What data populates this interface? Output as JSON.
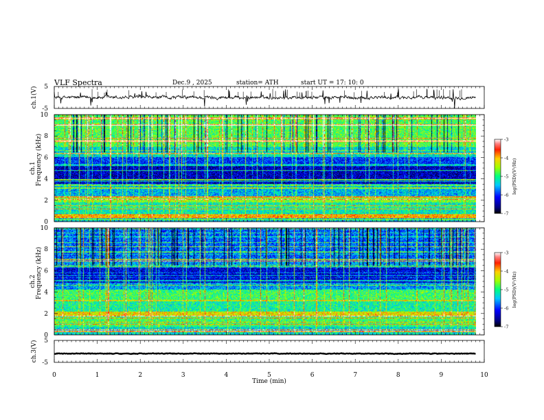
{
  "header": {
    "title": "VLF  Spectra",
    "date": "Dec.9  , 2025",
    "station": "station= ATH",
    "start_ut": "start  UT  =   17: 10: 0"
  },
  "chart_data": [
    {
      "type": "line",
      "name": "ch1-waveform",
      "ylabel": "ch.1(V)",
      "ylim": [
        -5,
        5
      ],
      "yticks": [
        "5",
        "-5"
      ],
      "xlim": [
        0,
        10
      ],
      "baseline": 0,
      "noise_amplitude": 0.6,
      "series_color": "#000000"
    },
    {
      "type": "heatmap",
      "name": "ch1-spectrogram",
      "ylabel_line1": "ch.1",
      "ylabel_line2": "Frequency  (kHz)",
      "ylim": [
        0,
        10
      ],
      "yticks": [
        "0",
        "2",
        "4",
        "6",
        "8",
        "10"
      ],
      "xlim": [
        0,
        9.8
      ],
      "colorbar": {
        "label": "log(PSD)(V²/Hz)",
        "range": [
          -7,
          -3
        ],
        "ticks": [
          "-3",
          "-4",
          "-5",
          "-6",
          "-7"
        ]
      },
      "bands": [
        {
          "f": [
            0,
            0.3
          ],
          "v": -5.5
        },
        {
          "f": [
            0.3,
            0.7
          ],
          "v": -4.0
        },
        {
          "f": [
            0.7,
            1.8
          ],
          "v": -5.2
        },
        {
          "f": [
            1.8,
            2.4
          ],
          "v": -4.6
        },
        {
          "f": [
            2.4,
            3.5
          ],
          "v": -5.5
        },
        {
          "f": [
            3.5,
            5.3
          ],
          "v": -6.4
        },
        {
          "f": [
            5.3,
            6.0
          ],
          "v": -6.0
        },
        {
          "f": [
            6.0,
            7.0
          ],
          "v": -5.3
        },
        {
          "f": [
            7.0,
            10.0
          ],
          "v": -4.8
        }
      ]
    },
    {
      "type": "heatmap",
      "name": "ch2-spectrogram",
      "ylabel_line1": "ch.2",
      "ylabel_line2": "Frequency  (kHz)",
      "ylim": [
        0,
        10
      ],
      "yticks": [
        "0",
        "2",
        "4",
        "6",
        "8",
        "10"
      ],
      "xlim": [
        0,
        9.8
      ],
      "colorbar": {
        "label": "log(PSD)(V²/Hz)",
        "range": [
          -7,
          -3
        ],
        "ticks": [
          "-3",
          "-4",
          "-5",
          "-6",
          "-7"
        ]
      },
      "bands": [
        {
          "f": [
            0,
            0.8
          ],
          "v": -5.3
        },
        {
          "f": [
            0.8,
            1.7
          ],
          "v": -4.9
        },
        {
          "f": [
            1.7,
            2.2
          ],
          "v": -4.2
        },
        {
          "f": [
            2.2,
            3.3
          ],
          "v": -5.1
        },
        {
          "f": [
            3.3,
            4.2
          ],
          "v": -4.9
        },
        {
          "f": [
            4.2,
            4.9
          ],
          "v": -5.6
        },
        {
          "f": [
            4.9,
            6.3
          ],
          "v": -6.3
        },
        {
          "f": [
            6.3,
            7.0
          ],
          "v": -5.6
        },
        {
          "f": [
            7.0,
            10.0
          ],
          "v": -5.8
        }
      ]
    },
    {
      "type": "line",
      "name": "ch3-waveform",
      "ylabel": "ch.3(V)",
      "ylim": [
        -5,
        5
      ],
      "yticks": [
        "5",
        "-5"
      ],
      "xlim": [
        0,
        9.8
      ],
      "baseline": -1,
      "noise_amplitude": 0.12,
      "series_color": "#000000"
    }
  ],
  "x_axis": {
    "label": "Time  (min)",
    "ticks": [
      "0",
      "1",
      "2",
      "3",
      "4",
      "5",
      "6",
      "7",
      "8",
      "9",
      "10"
    ]
  }
}
